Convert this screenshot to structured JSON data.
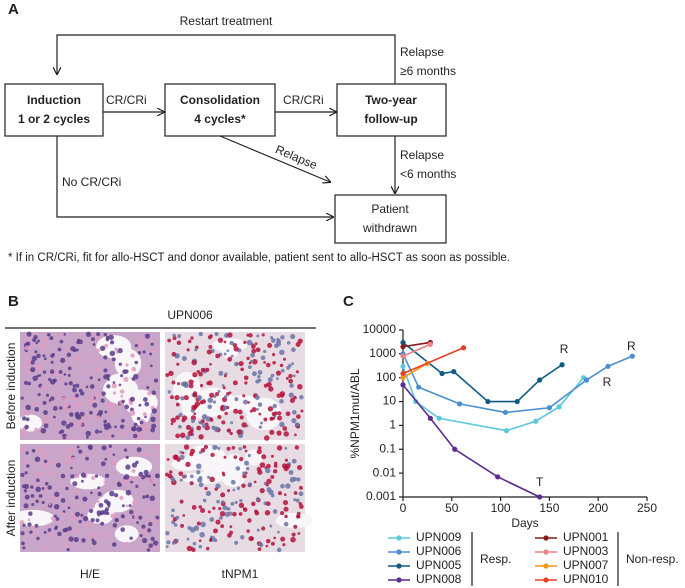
{
  "panel_a": {
    "letter": "A",
    "loop_label": "Restart treatment",
    "boxes": [
      {
        "lines": [
          "Induction",
          "1 or 2 cycles"
        ]
      },
      {
        "lines": [
          "Consolidation",
          "4 cycles*"
        ]
      },
      {
        "lines": [
          "Two-year",
          "follow-up"
        ]
      },
      {
        "lines": [
          "Patient",
          "withdrawn"
        ]
      }
    ],
    "edge_labels": [
      {
        "lines": [
          "CR/CRi"
        ]
      },
      {
        "lines": [
          "CR/CRi"
        ]
      },
      {
        "lines": [
          "Relapse",
          "≥6 months"
        ]
      },
      {
        "lines": [
          "Relapse",
          "<6 months"
        ]
      },
      {
        "lines": [
          "Relapse"
        ]
      },
      {
        "lines": [
          "No CR/CRi"
        ]
      }
    ],
    "footnote": "* If in CR/CRi, fit for allo-HSCT and donor available, patient sent to allo-HSCT as soon as possible."
  },
  "panel_b": {
    "letter": "B",
    "patient": "UPN006",
    "rows": [
      "Before induction",
      "After induction"
    ],
    "columns": [
      "H/E",
      "tNPM1"
    ]
  },
  "panel_c": {
    "letter": "C"
  },
  "chart_data": {
    "type": "line",
    "y_label": "%NPM1mut/ABL",
    "x_label": "Days",
    "log_y": true,
    "xlim": [
      0,
      250
    ],
    "xticks": [
      0,
      50,
      100,
      150,
      200,
      250
    ],
    "ylim": [
      0.001,
      10000
    ],
    "yticks": [
      10000,
      1000,
      100,
      10,
      1,
      0.1,
      0.01,
      0.001
    ],
    "groups": [
      "Resp.",
      "Non-resp."
    ],
    "series": [
      {
        "name": "UPN009",
        "color": "#5bc8dc",
        "x": [
          0,
          13,
          37,
          106,
          136,
          160,
          185
        ],
        "values": [
          300,
          10,
          2,
          0.6,
          1.5,
          6,
          100
        ]
      },
      {
        "name": "UPN006",
        "color": "#4a8fd0",
        "x": [
          0,
          16,
          58,
          105,
          150,
          188,
          210,
          235
        ],
        "values": [
          1000,
          40,
          8,
          3.5,
          5.5,
          80,
          300,
          800
        ]
      },
      {
        "name": "UPN005",
        "color": "#0e5a82",
        "x": [
          0,
          40,
          52,
          87,
          117,
          140,
          163
        ],
        "values": [
          3000,
          150,
          180,
          10,
          10,
          80,
          350
        ]
      },
      {
        "name": "UPN008",
        "color": "#5b2c91",
        "x": [
          0,
          28,
          53,
          97,
          140
        ],
        "values": [
          50,
          2,
          0.1,
          0.007,
          0.001
        ]
      },
      {
        "name": "UPN001",
        "color": "#8b1a1a",
        "x": [
          0,
          28
        ],
        "values": [
          2000,
          3000
        ]
      },
      {
        "name": "UPN003",
        "color": "#f08080",
        "x": [
          0,
          28
        ],
        "values": [
          800,
          2500
        ]
      },
      {
        "name": "UPN007",
        "color": "#f7941d",
        "x": [
          0,
          25
        ],
        "values": [
          100,
          400
        ]
      },
      {
        "name": "UPN010",
        "color": "#e8402a",
        "x": [
          0,
          62
        ],
        "values": [
          150,
          1800
        ]
      }
    ],
    "annotations": [
      {
        "text": "R",
        "x": 165,
        "y": 1500
      },
      {
        "text": "R",
        "x": 234,
        "y": 2000
      },
      {
        "text": "R",
        "x": 209,
        "y": 60
      },
      {
        "text": "T",
        "x": 140,
        "y": 0.004
      }
    ]
  }
}
